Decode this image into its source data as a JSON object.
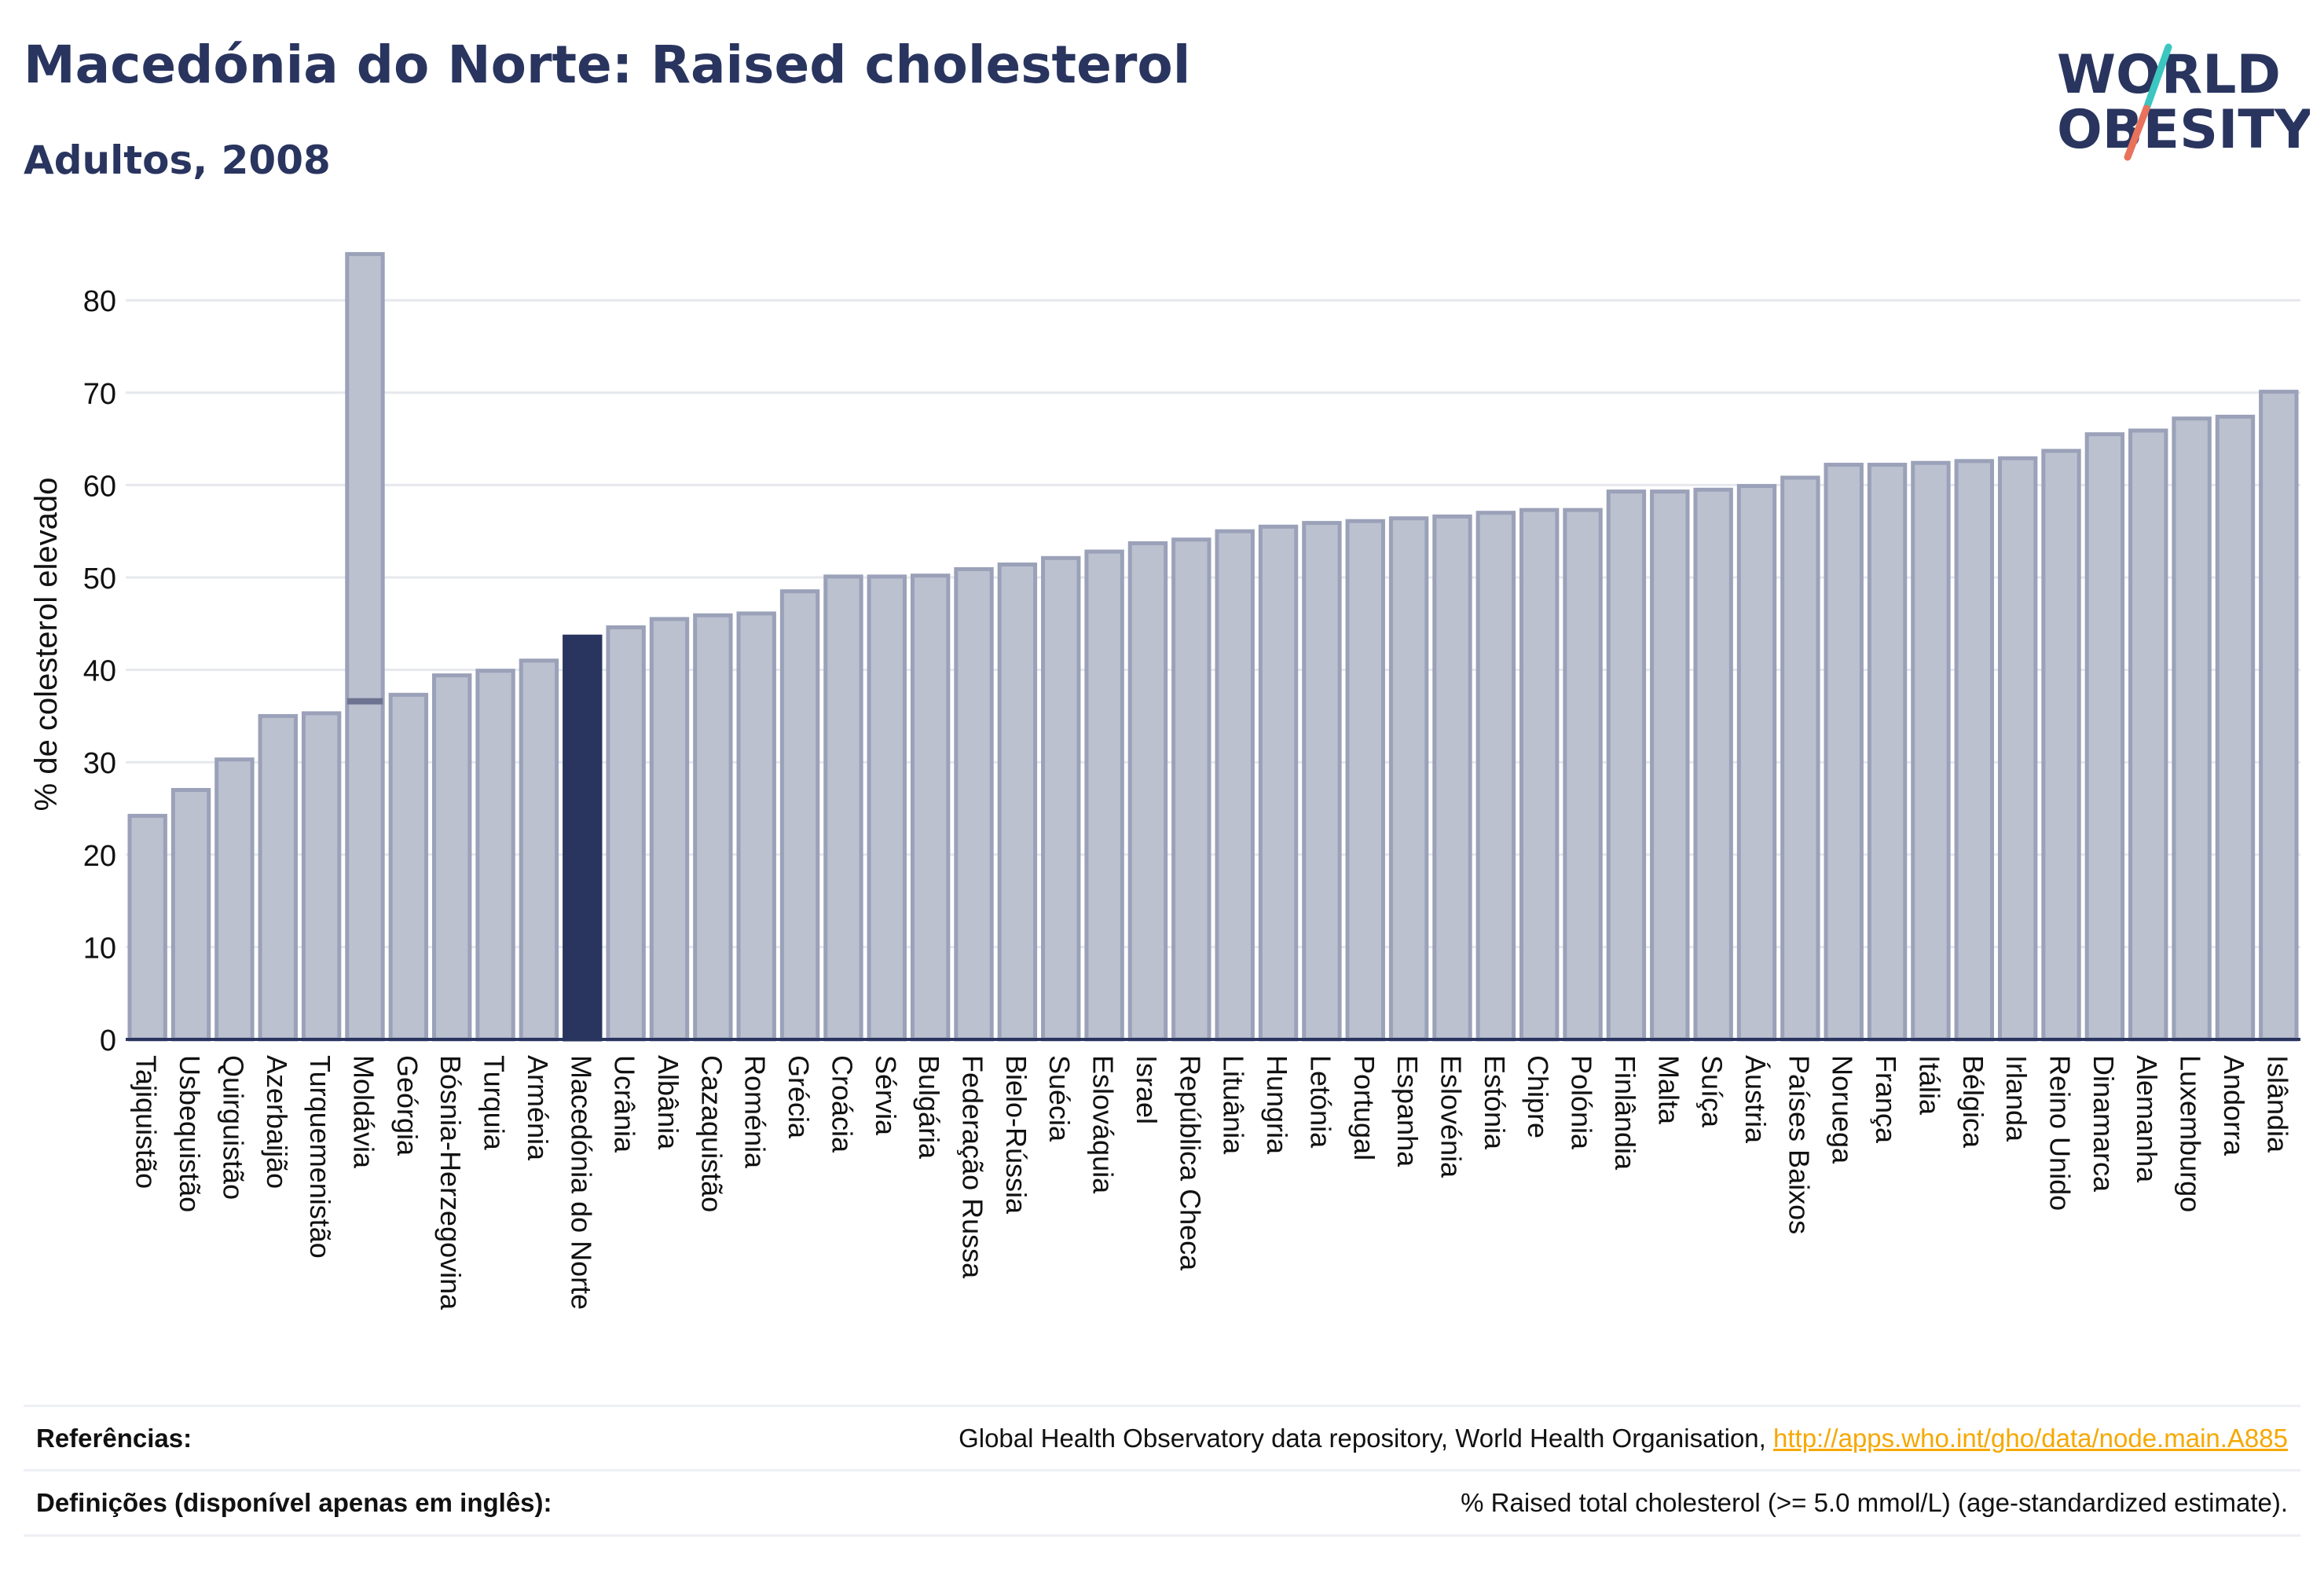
{
  "header": {
    "title": "Macedónia do Norte: Raised cholesterol",
    "subtitle": "Adultos, 2008"
  },
  "logo": {
    "line1": "WORLD",
    "line2": "OBESITY",
    "colors": {
      "text": "#29355f",
      "slash_top": "#3cc6c0",
      "slash_bottom": "#e8725c"
    }
  },
  "colors": {
    "bar_fill": "#bcc1d0",
    "bar_stroke": "#9aa1b8",
    "highlight": "#29355f",
    "grid": "#e6e8ee",
    "axis": "#29355f"
  },
  "chart_data": {
    "type": "bar",
    "ylabel": "% de colesterol elevado",
    "ylim": [
      0,
      85
    ],
    "yticks": [
      0,
      10,
      20,
      30,
      40,
      50,
      60,
      70,
      80
    ],
    "grid": true,
    "highlight": "Macedónia do Norte",
    "categories": [
      "Tajiquistão",
      "Usbequistão",
      "Quirguistão",
      "Azerbaijão",
      "Turquemenistão",
      "Moldávia",
      "Geórgia",
      "Bósnia-Herzegovina",
      "Turquia",
      "Arménia",
      "Macedónia do Norte",
      "Ucrânia",
      "Albânia",
      "Cazaquistão",
      "Roménia",
      "Grécia",
      "Croácia",
      "Sérvia",
      "Bulgária",
      "Federação Russa",
      "Bielo-Rússia",
      "Suécia",
      "Eslováquia",
      "Israel",
      "República Checa",
      "Lituânia",
      "Hungria",
      "Letónia",
      "Portugal",
      "Espanha",
      "Eslovénia",
      "Estónia",
      "Chipre",
      "Polónia",
      "Finlândia",
      "Malta",
      "Suíça",
      "Áustria",
      "Países Baixos",
      "Noruega",
      "França",
      "Itália",
      "Bélgica",
      "Irlanda",
      "Reino Unido",
      "Dinamarca",
      "Alemanha",
      "Luxemburgo",
      "Andorra",
      "Islândia"
    ],
    "values": [
      24.2,
      27.0,
      30.3,
      35.0,
      35.3,
      36.6,
      37.3,
      39.4,
      39.9,
      41.0,
      43.6,
      44.6,
      45.5,
      45.9,
      46.1,
      48.5,
      50.1,
      50.1,
      50.2,
      50.9,
      51.4,
      52.1,
      52.8,
      53.7,
      54.1,
      55.0,
      55.5,
      55.9,
      56.1,
      56.4,
      56.6,
      57.0,
      57.3,
      57.3,
      59.3,
      59.3,
      59.5,
      59.9,
      60.8,
      62.2,
      62.2,
      62.4,
      62.6,
      62.9,
      63.7,
      65.5,
      65.9,
      67.2,
      67.4,
      70.1
    ],
    "range_bars": [
      {
        "category": "Moldávia",
        "low": 36.6,
        "high": 85.0
      }
    ]
  },
  "references": {
    "refs_label": "Referências:",
    "refs_text": "Global Health Observatory data repository, World Health Organisation, ",
    "refs_link": "http://apps.who.int/gho/data/node.main.A885",
    "defs_label": "Definições (disponível apenas em inglês):",
    "defs_text": "% Raised total cholesterol (>= 5.0 mmol/L) (age-standardized estimate)."
  }
}
